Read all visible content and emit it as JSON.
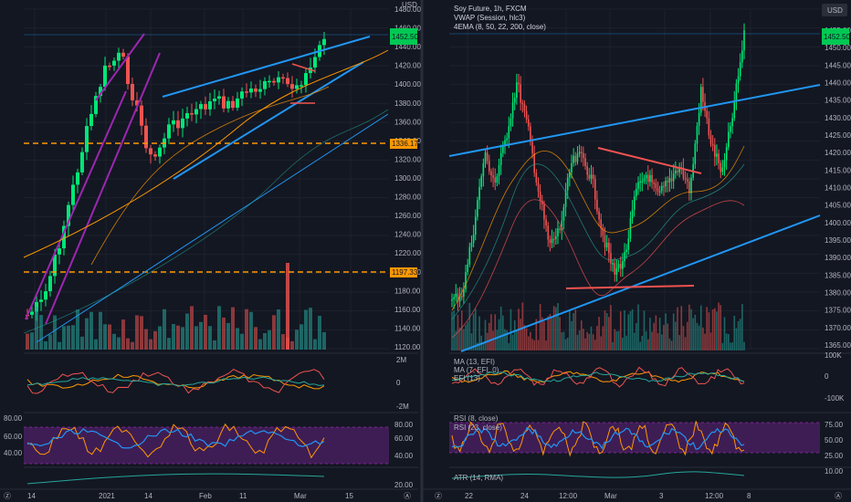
{
  "colors": {
    "bg": "#131722",
    "grid": "#1e222d",
    "bull": "#26a69a",
    "bull_bright": "#00e676",
    "bear": "#ef5350",
    "blue": "#2196f3",
    "purple": "#9c27b0",
    "orange": "#ff9800",
    "rsi_fill": "#4a1f63",
    "axis_text": "#b2b5be"
  },
  "left_chart": {
    "currency": "USD",
    "price_axis": [
      "1480.00",
      "1460.00",
      "1440.00",
      "1420.00",
      "1400.00",
      "1380.00",
      "1360.00",
      "1340.00",
      "1320.00",
      "1300.00",
      "1280.00",
      "1260.00",
      "1240.00",
      "1220.00",
      "1200.00",
      "1180.00",
      "1160.00",
      "1140.00",
      "1120.00"
    ],
    "current_price_tag": "1452.50",
    "level_tags": [
      "1336.17",
      "1197.33"
    ],
    "efi_axis": [
      "2M",
      "0",
      "-2M"
    ],
    "rsi_axis": [
      "80.00",
      "60.00",
      "40.00"
    ],
    "rsi_axis_right": [
      "80.00",
      "60.00",
      "40.00"
    ],
    "atr_axis": [
      "20.00"
    ],
    "time_axis": [
      "14",
      "2021",
      "14",
      "Feb",
      "11",
      "Mar",
      "15"
    ]
  },
  "right_chart": {
    "currency": "USD",
    "title_line1": "Soy Future, 1h, FXCM",
    "title_line2": "VWAP (Session, hlc3)",
    "title_line3": "4EMA (8, 50, 22, 200, close)",
    "price_axis": [
      "1455.00",
      "1450.00",
      "1445.00",
      "1440.00",
      "1435.00",
      "1430.00",
      "1425.00",
      "1420.00",
      "1415.00",
      "1410.00",
      "1405.00",
      "1400.00",
      "1395.00",
      "1390.00",
      "1385.00",
      "1380.00",
      "1375.00",
      "1370.00",
      "1365.00"
    ],
    "current_price_tag": "1452.50",
    "efi_labels": [
      "MA (13, EFI)",
      "MA (7, EFI, 0)",
      "EFI (13)"
    ],
    "efi_axis": [
      "100K",
      "0",
      "-100K"
    ],
    "rsi_labels": [
      "RSI (8, close)",
      "RSI (23, close)"
    ],
    "rsi_axis": [
      "75.00",
      "50.00",
      "25.00"
    ],
    "atr_label": "ATR (14, RMA)",
    "atr_axis": [
      "10.00"
    ],
    "time_axis": [
      "22",
      "24",
      "12:00",
      "Mar",
      "3",
      "12:00",
      "8"
    ]
  },
  "chart_data": [
    {
      "type": "candlestick",
      "title": "",
      "ylim": [
        1120,
        1480
      ],
      "levels": [
        1336.17,
        1197.33
      ],
      "last": 1452.5
    },
    {
      "type": "candlestick",
      "title": "Soy Future, 1h, FXCM",
      "ylim": [
        1365,
        1455
      ],
      "last": 1452.5
    }
  ]
}
